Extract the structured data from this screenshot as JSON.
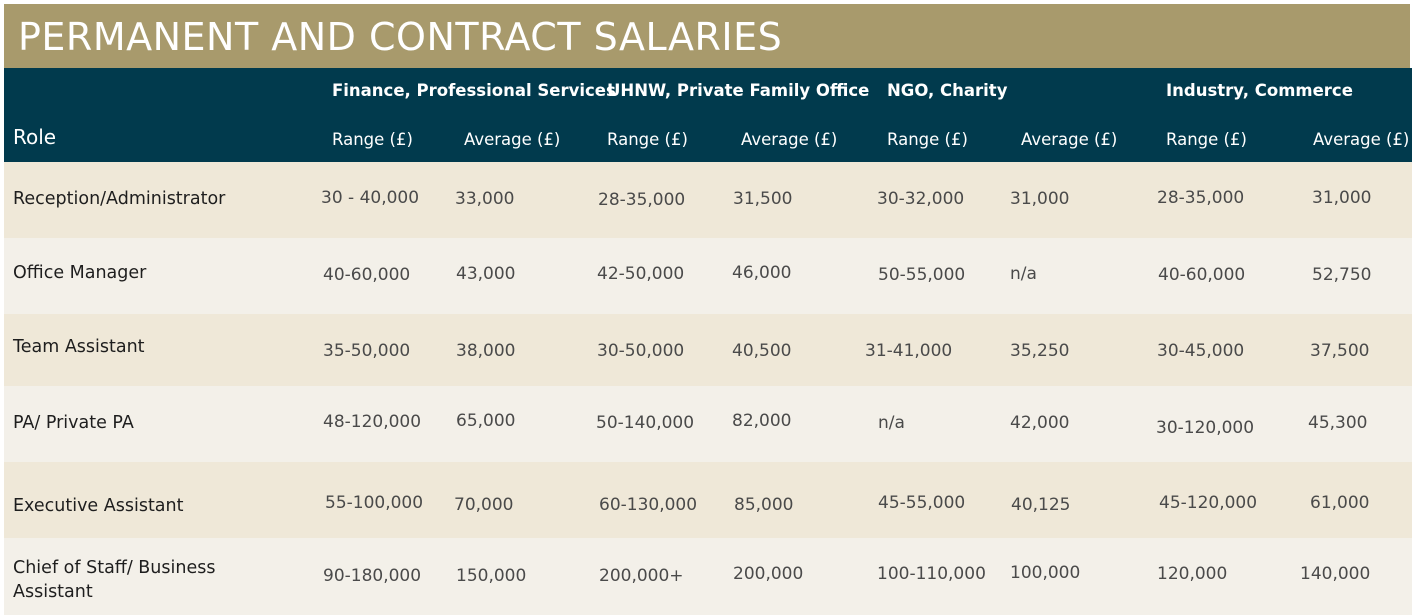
{
  "title": "PERMANENT AND CONTRACT SALARIES",
  "header": {
    "role": "Role",
    "groups": [
      "Finance, Professional Services",
      "UHNW, Private Family Office",
      "NGO, Charity",
      "Industry, Commerce"
    ],
    "range_label": "Range (£)",
    "average_label": "Average (£)"
  },
  "rows": [
    {
      "role": "Reception/Administrator",
      "values": [
        "30 - 40,000",
        "33,000",
        "28-35,000",
        "31,500",
        "30-32,000",
        "31,000",
        "28-35,000",
        "31,000"
      ]
    },
    {
      "role": "Office Manager",
      "values": [
        "40-60,000",
        "43,000",
        "42-50,000",
        "46,000",
        "50-55,000",
        "n/a",
        "40-60,000",
        "52,750"
      ]
    },
    {
      "role": "Team Assistant",
      "values": [
        "35-50,000",
        "38,000",
        "30-50,000",
        "40,500",
        "31-41,000",
        "35,250",
        "30-45,000",
        "37,500"
      ]
    },
    {
      "role": "PA/ Private PA",
      "values": [
        "48-120,000",
        "65,000",
        "50-140,000",
        "82,000",
        "n/a",
        "42,000",
        "30-120,000",
        "45,300"
      ]
    },
    {
      "role": "Executive Assistant",
      "values": [
        "55-100,000",
        "70,000",
        "60-130,000",
        "85,000",
        "45-55,000",
        "40,125",
        "45-120,000",
        "61,000"
      ]
    },
    {
      "role": "Chief of Staff/ Business Assistant",
      "values": [
        "90-180,000",
        "150,000",
        "200,000+",
        "200,000",
        "100-110,000",
        "100,000",
        "120,000",
        "140,000"
      ]
    }
  ]
}
